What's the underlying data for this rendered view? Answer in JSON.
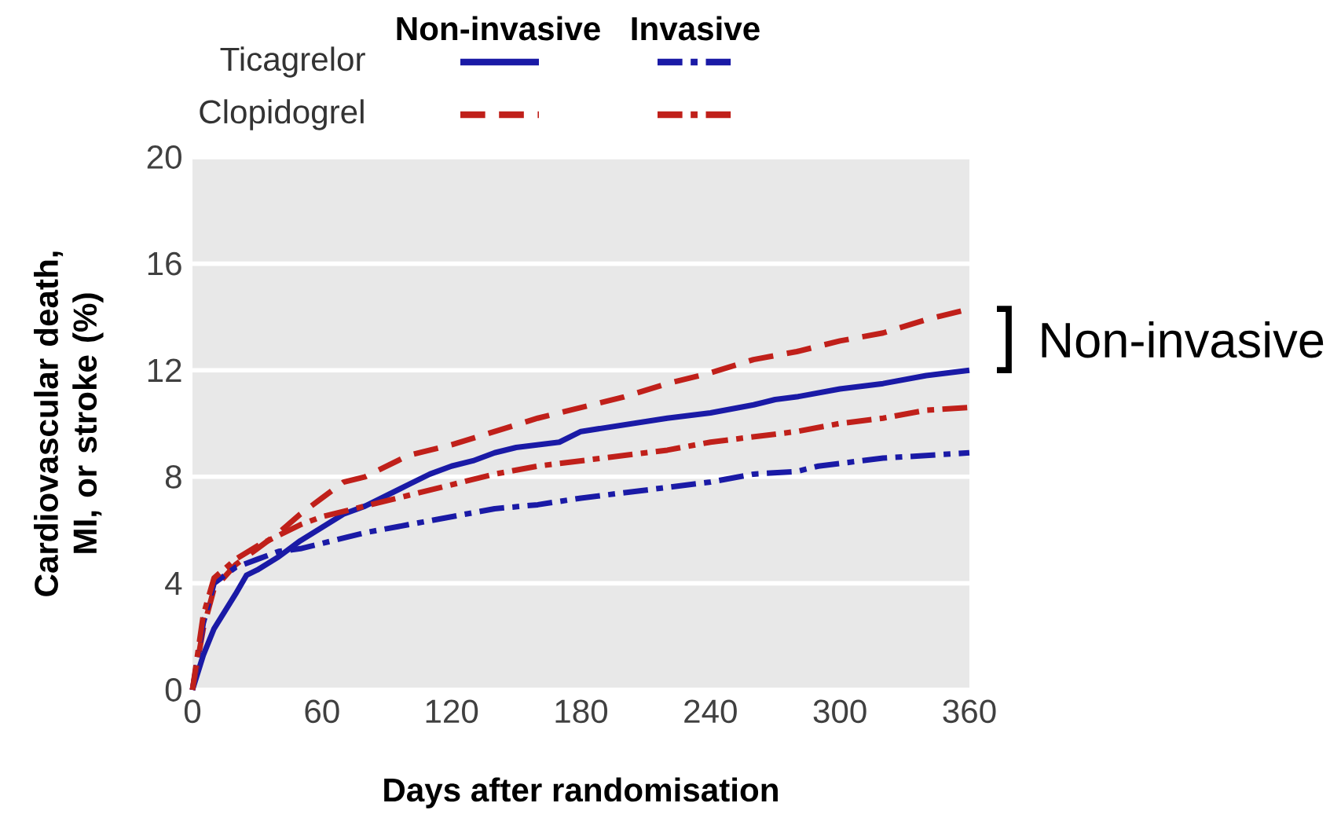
{
  "chart_data": {
    "type": "line",
    "xlabel": "Days after randomisation",
    "ylabel": "Cardiovascular death,\nMI, or stroke (%)",
    "xlim": [
      0,
      360
    ],
    "ylim": [
      0,
      20
    ],
    "xticks": [
      0,
      60,
      120,
      180,
      240,
      300,
      360
    ],
    "yticks": [
      0,
      4,
      8,
      12,
      16,
      20
    ],
    "grid": "y",
    "annotations": [
      "Non-invasive",
      "Invasive",
      "Ticagrelor",
      "Clopidogrel",
      "Non-invasive"
    ],
    "series": [
      {
        "color": "#1a1aa6",
        "line_style": "solid",
        "x": [
          0,
          5,
          10,
          20,
          25,
          30,
          40,
          50,
          60,
          70,
          80,
          90,
          100,
          110,
          120,
          130,
          140,
          150,
          160,
          170,
          180,
          200,
          220,
          240,
          260,
          270,
          280,
          300,
          320,
          340,
          360
        ],
        "values": [
          0,
          1.3,
          2.3,
          3.6,
          4.3,
          4.5,
          5.0,
          5.6,
          6.1,
          6.6,
          6.9,
          7.3,
          7.7,
          8.1,
          8.4,
          8.6,
          8.9,
          9.1,
          9.2,
          9.3,
          9.7,
          9.95,
          10.2,
          10.4,
          10.7,
          10.9,
          11.0,
          11.3,
          11.5,
          11.8,
          12.0
        ]
      },
      {
        "color": "#c0201a",
        "line_style": "dashed",
        "x": [
          0,
          5,
          10,
          20,
          30,
          40,
          50,
          60,
          70,
          80,
          90,
          100,
          110,
          120,
          140,
          160,
          180,
          200,
          220,
          240,
          260,
          280,
          300,
          320,
          340,
          360
        ],
        "values": [
          0,
          2.3,
          3.8,
          4.7,
          5.3,
          5.9,
          6.6,
          7.2,
          7.8,
          8.0,
          8.4,
          8.8,
          9.0,
          9.2,
          9.7,
          10.2,
          10.6,
          11.0,
          11.5,
          11.9,
          12.4,
          12.7,
          13.1,
          13.4,
          13.9,
          14.3
        ]
      },
      {
        "color": "#1a1aa6",
        "line_style": "dashdot",
        "x": [
          0,
          5,
          10,
          20,
          30,
          40,
          50,
          60,
          80,
          100,
          120,
          140,
          160,
          180,
          200,
          220,
          240,
          260,
          280,
          290,
          300,
          320,
          340,
          360
        ],
        "values": [
          0,
          2.5,
          4.0,
          4.6,
          4.9,
          5.2,
          5.3,
          5.5,
          5.9,
          6.2,
          6.5,
          6.8,
          6.95,
          7.2,
          7.4,
          7.6,
          7.8,
          8.1,
          8.2,
          8.4,
          8.5,
          8.7,
          8.8,
          8.9
        ]
      },
      {
        "color": "#c0201a",
        "line_style": "dashdot",
        "x": [
          0,
          5,
          10,
          20,
          30,
          40,
          50,
          60,
          70,
          80,
          100,
          120,
          140,
          160,
          180,
          200,
          220,
          240,
          260,
          280,
          300,
          320,
          340,
          360
        ],
        "values": [
          0,
          2.8,
          4.2,
          4.9,
          5.4,
          5.8,
          6.2,
          6.5,
          6.7,
          6.9,
          7.3,
          7.7,
          8.1,
          8.4,
          8.6,
          8.8,
          9.0,
          9.3,
          9.5,
          9.7,
          10.0,
          10.2,
          10.5,
          10.6
        ]
      }
    ]
  }
}
